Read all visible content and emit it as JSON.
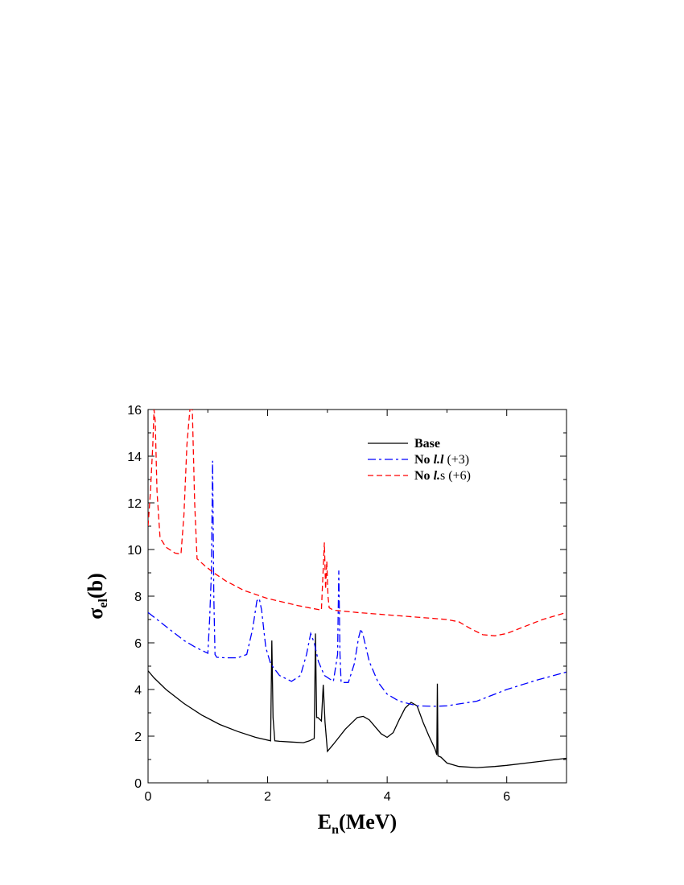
{
  "chart_data": {
    "type": "line",
    "title": "",
    "xlabel": "E",
    "xlabel_sub": "n",
    "xlabel_suffix": "(MeV)",
    "ylabel": "σ",
    "ylabel_sub": "el",
    "ylabel_suffix": "(b)",
    "xlim": [
      0,
      7
    ],
    "ylim": [
      0,
      16
    ],
    "xticks": [
      0,
      2,
      4,
      6
    ],
    "yticks": [
      0,
      2,
      4,
      6,
      8,
      10,
      12,
      14,
      16
    ],
    "grid": false,
    "legend_position": "top-right",
    "series": [
      {
        "legend_bold": "Base",
        "legend_rest": "",
        "color": "#000000",
        "dash": "solid",
        "x": [
          0,
          0.1,
          0.3,
          0.6,
          0.9,
          1.2,
          1.5,
          1.8,
          2.05,
          2.07,
          2.09,
          2.12,
          2.2,
          2.4,
          2.6,
          2.7,
          2.78,
          2.8,
          2.82,
          2.84,
          2.9,
          2.93,
          2.96,
          3.0,
          3.1,
          3.3,
          3.5,
          3.6,
          3.7,
          3.8,
          3.9,
          4.0,
          4.1,
          4.2,
          4.3,
          4.4,
          4.5,
          4.6,
          4.7,
          4.8,
          4.83,
          4.84,
          4.85,
          4.9,
          5.0,
          5.2,
          5.5,
          5.8,
          6.0,
          6.5,
          7.0
        ],
        "y": [
          4.8,
          4.5,
          4.0,
          3.4,
          2.9,
          2.5,
          2.2,
          1.95,
          1.8,
          6.1,
          2.8,
          1.8,
          1.78,
          1.75,
          1.72,
          1.8,
          1.9,
          6.4,
          2.8,
          2.8,
          2.65,
          4.2,
          2.6,
          1.35,
          1.65,
          2.3,
          2.8,
          2.85,
          2.7,
          2.4,
          2.1,
          1.95,
          2.15,
          2.7,
          3.2,
          3.45,
          3.3,
          2.6,
          2.0,
          1.45,
          1.2,
          4.25,
          1.15,
          1.1,
          0.85,
          0.7,
          0.65,
          0.7,
          0.75,
          0.9,
          1.05
        ]
      },
      {
        "legend_bold": "No ",
        "legend_italic": "l.l",
        "legend_rest": " (+3)",
        "color": "#0000ff",
        "dash": "dashdot",
        "x": [
          0,
          0.2,
          0.4,
          0.6,
          0.8,
          1.0,
          1.03,
          1.06,
          1.08,
          1.1,
          1.12,
          1.15,
          1.3,
          1.5,
          1.65,
          1.75,
          1.82,
          1.86,
          1.9,
          1.97,
          2.05,
          2.2,
          2.4,
          2.55,
          2.65,
          2.72,
          2.78,
          2.85,
          2.95,
          3.1,
          3.17,
          3.19,
          3.21,
          3.23,
          3.35,
          3.45,
          3.52,
          3.56,
          3.6,
          3.7,
          3.85,
          4.0,
          4.2,
          4.5,
          4.8,
          5.0,
          5.5,
          6.0,
          6.5,
          7.0
        ],
        "y": [
          7.3,
          6.9,
          6.5,
          6.1,
          5.8,
          5.55,
          7.0,
          9.0,
          13.8,
          8.0,
          5.5,
          5.38,
          5.36,
          5.36,
          5.5,
          6.6,
          7.8,
          7.9,
          7.4,
          5.8,
          5.1,
          4.6,
          4.35,
          4.6,
          5.5,
          6.4,
          6.0,
          5.2,
          4.6,
          4.35,
          5.5,
          9.1,
          5.5,
          4.3,
          4.3,
          5.1,
          6.2,
          6.6,
          6.3,
          5.2,
          4.3,
          3.8,
          3.5,
          3.3,
          3.28,
          3.3,
          3.5,
          4.0,
          4.4,
          4.75
        ]
      },
      {
        "legend_bold": "No ",
        "legend_italic": "l.",
        "legend_rest": "s (+6)",
        "color": "#ff0000",
        "dash": "dashed",
        "x": [
          0,
          0.04,
          0.08,
          0.1,
          0.12,
          0.15,
          0.2,
          0.3,
          0.45,
          0.55,
          0.6,
          0.65,
          0.7,
          0.74,
          0.78,
          0.82,
          0.95,
          1.1,
          1.3,
          1.6,
          2.0,
          2.5,
          2.9,
          2.95,
          2.97,
          2.99,
          3.01,
          3.03,
          3.1,
          3.5,
          4.0,
          4.5,
          5.0,
          5.2,
          5.4,
          5.6,
          5.8,
          6.0,
          6.3,
          6.6,
          7.0
        ],
        "y": [
          11.0,
          12.5,
          14.5,
          16.0,
          15.5,
          12.5,
          10.5,
          10.1,
          9.85,
          9.8,
          11.5,
          14.5,
          16.0,
          16.0,
          12.0,
          9.6,
          9.3,
          9.0,
          8.65,
          8.25,
          7.9,
          7.6,
          7.4,
          10.3,
          8.3,
          9.5,
          8.0,
          7.5,
          7.4,
          7.3,
          7.2,
          7.1,
          7.0,
          6.9,
          6.6,
          6.35,
          6.3,
          6.4,
          6.7,
          7.0,
          7.3
        ]
      }
    ]
  }
}
